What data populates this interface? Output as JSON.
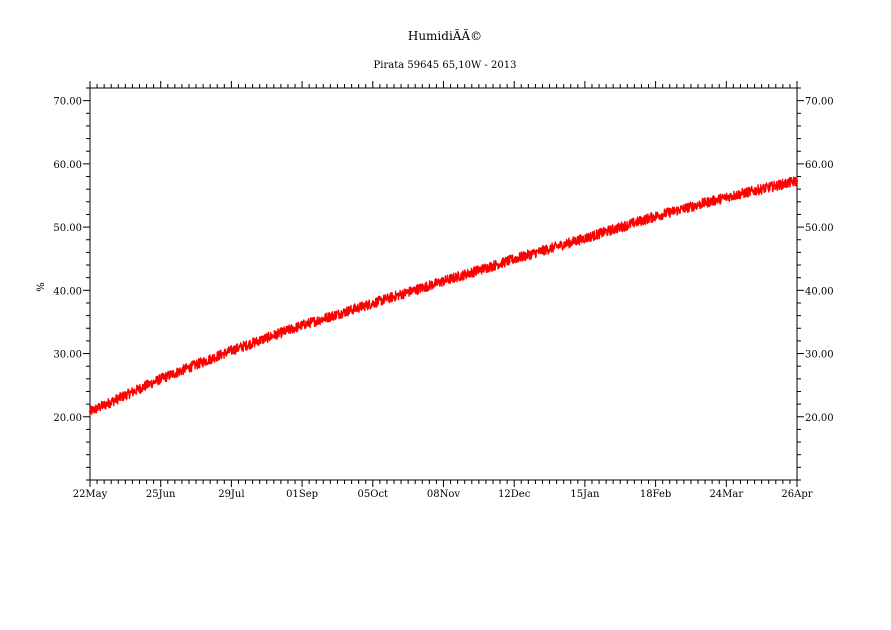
{
  "chart_data": {
    "type": "line",
    "title": "HumidiÃÃ©",
    "subtitle": "Pirata 59645 65,10W - 2013",
    "xlabel": "",
    "ylabel": "%",
    "x_ticks": [
      "22May",
      "25Jun",
      "29Jul",
      "01Sep",
      "05Oct",
      "08Nov",
      "12Dec",
      "15Jan",
      "18Feb",
      "24Mar",
      "26Apr"
    ],
    "y_ticks": [
      "20.00",
      "30.00",
      "40.00",
      "50.00",
      "60.00",
      "70.00"
    ],
    "y_tick_values": [
      20,
      30,
      40,
      50,
      60,
      70
    ],
    "ylim": [
      10,
      72
    ],
    "xlim": [
      "2013-05-22",
      "2014-04-26"
    ],
    "grid": false,
    "series": [
      {
        "color": "#ff0000",
        "x": [
          "2013-05-22",
          "2013-06-25",
          "2013-07-29",
          "2013-09-01",
          "2013-10-05",
          "2013-11-08",
          "2013-12-12",
          "2014-01-15",
          "2014-02-18",
          "2014-03-24",
          "2014-04-26"
        ],
        "values": [
          20.8,
          26.0,
          30.5,
          34.5,
          38.0,
          41.5,
          45.0,
          48.3,
          51.8,
          54.8,
          57.3
        ]
      }
    ]
  }
}
